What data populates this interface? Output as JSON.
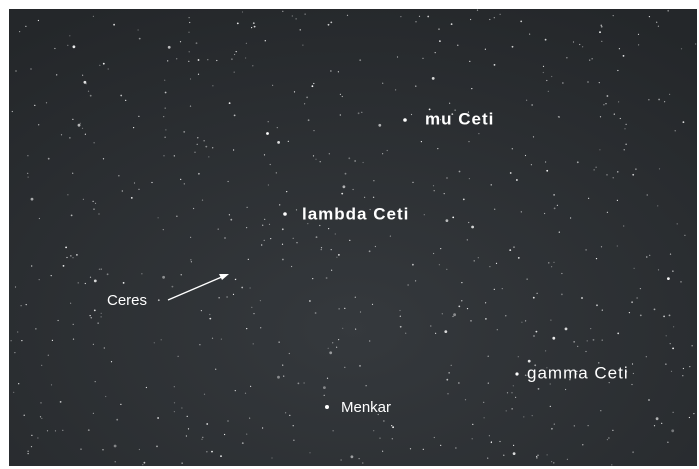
{
  "labels": [
    "mu Ceti",
    "lambda Ceti",
    "Ceres",
    "gamma Ceti",
    "Menkar"
  ]
}
